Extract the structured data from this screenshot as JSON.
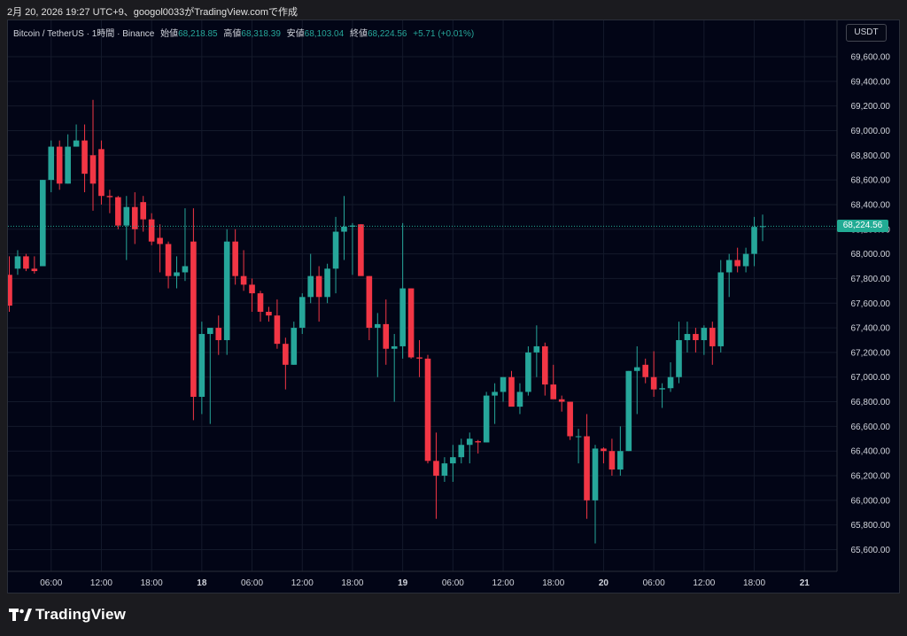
{
  "header": {
    "caption": "2月 20, 2026 19:27 UTC+9、googol0033がTradingView.comで作成"
  },
  "legend": {
    "symbol": "Bitcoin / TetherUS · 1時間 · Binance",
    "open_label": "始値",
    "open": "68,218.85",
    "high_label": "高値",
    "high": "68,318.39",
    "low_label": "安値",
    "low": "68,103.04",
    "close_label": "終値",
    "close": "68,224.56",
    "change": "+5.71 (+0.01%)"
  },
  "currency_button": "USDT",
  "last_price_tag": "68,224.56",
  "footer": {
    "brand": "TradingView"
  },
  "colors": {
    "up": "#26a69a",
    "down": "#f23645",
    "background": "#020516",
    "grid": "#141a2b",
    "tag": "#22ab94"
  },
  "chart_data": {
    "type": "candlestick",
    "title": "Bitcoin / TetherUS · 1時間 · Binance",
    "y_ticks": [
      "69,600.00",
      "69,400.00",
      "69,200.00",
      "69,000.00",
      "68,800.00",
      "68,600.00",
      "68,400.00",
      "68,200.00",
      "68,000.00",
      "67,800.00",
      "67,600.00",
      "67,400.00",
      "67,200.00",
      "67,000.00",
      "66,800.00",
      "66,600.00",
      "66,400.00",
      "66,200.00",
      "66,000.00",
      "65,800.00",
      "65,600.00"
    ],
    "y_tick_values": [
      69600,
      69400,
      69200,
      69000,
      68800,
      68600,
      68400,
      68200,
      68000,
      67800,
      67600,
      67400,
      67200,
      67000,
      66800,
      66600,
      66400,
      66200,
      66000,
      65800,
      65600
    ],
    "ylim": [
      65500,
      69700
    ],
    "x_ticks": [
      {
        "label": "06:00",
        "index": 5,
        "bold": false
      },
      {
        "label": "12:00",
        "index": 11,
        "bold": false
      },
      {
        "label": "18:00",
        "index": 17,
        "bold": false
      },
      {
        "label": "18",
        "index": 23,
        "bold": true
      },
      {
        "label": "06:00",
        "index": 29,
        "bold": false
      },
      {
        "label": "12:00",
        "index": 35,
        "bold": false
      },
      {
        "label": "18:00",
        "index": 41,
        "bold": false
      },
      {
        "label": "19",
        "index": 47,
        "bold": true
      },
      {
        "label": "06:00",
        "index": 53,
        "bold": false
      },
      {
        "label": "12:00",
        "index": 59,
        "bold": false
      },
      {
        "label": "18:00",
        "index": 65,
        "bold": false
      },
      {
        "label": "20",
        "index": 71,
        "bold": true
      },
      {
        "label": "06:00",
        "index": 77,
        "bold": false
      },
      {
        "label": "12:00",
        "index": 83,
        "bold": false
      },
      {
        "label": "18:00",
        "index": 89,
        "bold": false
      },
      {
        "label": "21",
        "index": 95,
        "bold": true
      }
    ],
    "last_price": 68224.56,
    "ohlc": [
      [
        67830,
        67980,
        67530,
        67580
      ],
      [
        67880,
        68030,
        67830,
        67980
      ],
      [
        67980,
        68000,
        67860,
        67880
      ],
      [
        67880,
        67980,
        67840,
        67860
      ],
      [
        67900,
        68600,
        67900,
        68600
      ],
      [
        68600,
        68920,
        68500,
        68870
      ],
      [
        68870,
        68920,
        68520,
        68570
      ],
      [
        68570,
        68970,
        68570,
        68870
      ],
      [
        68870,
        69050,
        68870,
        68920
      ],
      [
        68920,
        69050,
        68500,
        68650
      ],
      [
        68800,
        69250,
        68350,
        68570
      ],
      [
        68850,
        68920,
        68400,
        68470
      ],
      [
        68470,
        68520,
        68330,
        68460
      ],
      [
        68460,
        68470,
        68200,
        68230
      ],
      [
        68230,
        68470,
        67950,
        68380
      ],
      [
        68380,
        68500,
        68080,
        68200
      ],
      [
        68420,
        68470,
        68180,
        68280
      ],
      [
        68280,
        68330,
        68070,
        68100
      ],
      [
        68130,
        68240,
        67850,
        68080
      ],
      [
        68080,
        68100,
        67720,
        67820
      ],
      [
        67820,
        67980,
        67720,
        67850
      ],
      [
        67850,
        68370,
        67780,
        67900
      ],
      [
        68100,
        68370,
        66650,
        66840
      ],
      [
        66840,
        67450,
        66700,
        67350
      ],
      [
        67350,
        67370,
        66620,
        67400
      ],
      [
        67400,
        67500,
        67180,
        67300
      ],
      [
        67300,
        68200,
        67180,
        68100
      ],
      [
        68100,
        68200,
        67750,
        67820
      ],
      [
        67820,
        68030,
        67700,
        67750
      ],
      [
        67750,
        67800,
        67530,
        67680
      ],
      [
        67680,
        67700,
        67450,
        67530
      ],
      [
        67530,
        67570,
        67450,
        67500
      ],
      [
        67500,
        67630,
        67230,
        67270
      ],
      [
        67270,
        67320,
        66900,
        67100
      ],
      [
        67100,
        67450,
        67100,
        67400
      ],
      [
        67400,
        67680,
        67350,
        67650
      ],
      [
        67650,
        68000,
        67600,
        67820
      ],
      [
        67820,
        67900,
        67450,
        67650
      ],
      [
        67650,
        67920,
        67600,
        67880
      ],
      [
        67880,
        68300,
        67680,
        68180
      ],
      [
        68180,
        68470,
        67950,
        68220
      ],
      [
        68220,
        68250,
        67830,
        68230
      ],
      [
        68240,
        68240,
        67850,
        67820
      ],
      [
        67820,
        67820,
        67300,
        67400
      ],
      [
        67400,
        67520,
        67000,
        67430
      ],
      [
        67430,
        67630,
        67100,
        67230
      ],
      [
        67230,
        67350,
        66800,
        67250
      ],
      [
        67250,
        68250,
        67150,
        67720
      ],
      [
        67720,
        67720,
        67150,
        67160
      ],
      [
        67160,
        67300,
        67000,
        67150
      ],
      [
        67150,
        67180,
        66300,
        66320
      ],
      [
        66320,
        66550,
        65850,
        66200
      ],
      [
        66200,
        66350,
        66150,
        66300
      ],
      [
        66300,
        66450,
        66150,
        66350
      ],
      [
        66350,
        66500,
        66300,
        66450
      ],
      [
        66450,
        66550,
        66300,
        66500
      ],
      [
        66480,
        66490,
        66380,
        66470
      ],
      [
        66470,
        66880,
        66470,
        66850
      ],
      [
        66850,
        66950,
        66620,
        66880
      ],
      [
        66880,
        67000,
        66800,
        67000
      ],
      [
        67000,
        67050,
        66780,
        66760
      ],
      [
        66760,
        66950,
        66700,
        66880
      ],
      [
        66880,
        67250,
        66850,
        67200
      ],
      [
        67200,
        67420,
        67000,
        67250
      ],
      [
        67250,
        67280,
        66850,
        66940
      ],
      [
        66940,
        67100,
        66850,
        66820
      ],
      [
        66820,
        66850,
        66720,
        66800
      ],
      [
        66800,
        66800,
        66490,
        66520
      ],
      [
        66520,
        66580,
        66300,
        66520
      ],
      [
        66520,
        66700,
        65850,
        66000
      ],
      [
        66000,
        66450,
        65650,
        66420
      ],
      [
        66420,
        66430,
        66300,
        66400
      ],
      [
        66400,
        66500,
        66200,
        66250
      ],
      [
        66250,
        66600,
        66200,
        66400
      ],
      [
        66400,
        67050,
        66400,
        67050
      ],
      [
        67050,
        67250,
        66700,
        67080
      ],
      [
        67100,
        67150,
        66950,
        67000
      ],
      [
        67000,
        67210,
        66840,
        66900
      ],
      [
        66900,
        66950,
        66750,
        66910
      ],
      [
        66910,
        67120,
        66880,
        67000
      ],
      [
        67000,
        67450,
        66950,
        67300
      ],
      [
        67300,
        67450,
        67200,
        67350
      ],
      [
        67350,
        67400,
        67200,
        67300
      ],
      [
        67300,
        67420,
        67180,
        67400
      ],
      [
        67400,
        67450,
        67100,
        67250
      ],
      [
        67250,
        67950,
        67200,
        67850
      ],
      [
        67850,
        68000,
        67650,
        67950
      ],
      [
        67950,
        68050,
        67850,
        67900
      ],
      [
        67900,
        68050,
        67850,
        68000
      ],
      [
        68000,
        68300,
        67900,
        68218.85
      ],
      [
        68218.85,
        68318.39,
        68103.04,
        68224.56
      ]
    ]
  }
}
